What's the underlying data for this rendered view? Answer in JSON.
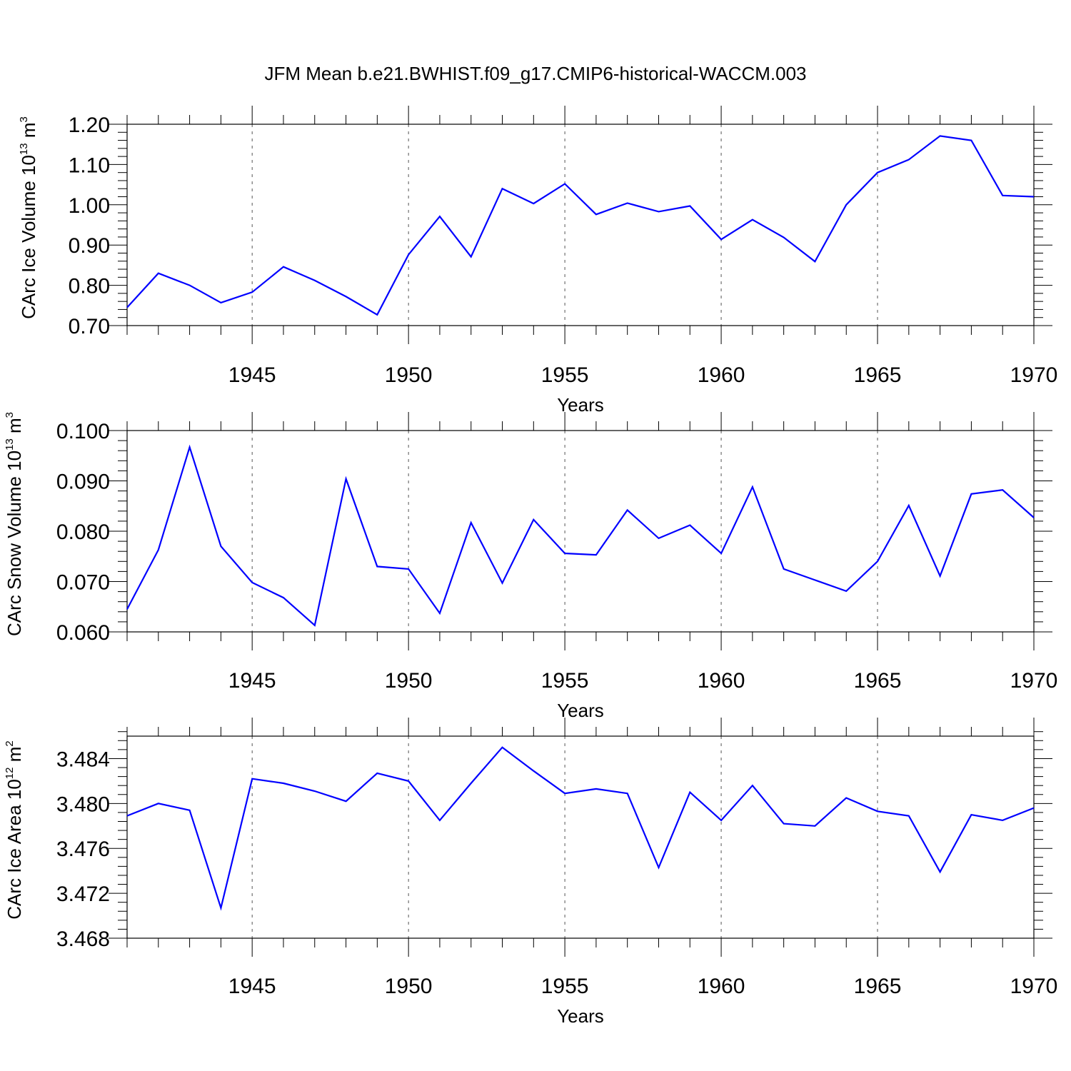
{
  "title": "JFM Mean b.e21.BWHIST.f09_g17.CMIP6-historical-WACCM.003",
  "chart_data": [
    {
      "type": "line",
      "xlabel": "Years",
      "ylabel": {
        "text": "CArc Ice Volume 10",
        "exponent": "13",
        "unit": " m",
        "unit_exponent": "3"
      },
      "xlim": [
        1941,
        1970
      ],
      "ylim": [
        0.7,
        1.2
      ],
      "x_ticks": [
        "1945",
        "1950",
        "1955",
        "1960",
        "1965",
        "1970"
      ],
      "y_ticks": [
        "0.70",
        "0.80",
        "0.90",
        "1.00",
        "1.10",
        "1.20"
      ],
      "grid": "vertical dashed at major x ticks",
      "line_color": "#0000ff",
      "x": [
        1941,
        1942,
        1943,
        1944,
        1945,
        1946,
        1947,
        1948,
        1949,
        1950,
        1951,
        1952,
        1953,
        1954,
        1955,
        1956,
        1957,
        1958,
        1959,
        1960,
        1961,
        1962,
        1963,
        1964,
        1965,
        1966,
        1967,
        1968,
        1969,
        1970
      ],
      "values": [
        0.745,
        0.83,
        0.8,
        0.757,
        0.783,
        0.846,
        0.812,
        0.772,
        0.727,
        0.876,
        0.971,
        0.871,
        1.04,
        1.003,
        1.052,
        0.976,
        1.004,
        0.983,
        0.997,
        0.914,
        0.963,
        0.919,
        0.859,
        1.0,
        1.08,
        1.112,
        1.171,
        1.16,
        1.023,
        1.02
      ]
    },
    {
      "type": "line",
      "xlabel": "Years",
      "ylabel": {
        "text": "CArc Snow Volume 10",
        "exponent": "13",
        "unit": " m",
        "unit_exponent": "3"
      },
      "xlim": [
        1941,
        1970
      ],
      "ylim": [
        0.06,
        0.1
      ],
      "x_ticks": [
        "1945",
        "1950",
        "1955",
        "1960",
        "1965",
        "1970"
      ],
      "y_ticks": [
        "0.060",
        "0.070",
        "0.080",
        "0.090",
        "0.100"
      ],
      "grid": "vertical dashed at major x ticks",
      "line_color": "#0000ff",
      "x": [
        1941,
        1942,
        1943,
        1944,
        1945,
        1946,
        1947,
        1948,
        1949,
        1950,
        1951,
        1952,
        1953,
        1954,
        1955,
        1956,
        1957,
        1958,
        1959,
        1960,
        1961,
        1962,
        1963,
        1964,
        1965,
        1966,
        1967,
        1968,
        1969,
        1970
      ],
      "values": [
        0.0645,
        0.0763,
        0.0967,
        0.077,
        0.0698,
        0.0668,
        0.0613,
        0.0904,
        0.073,
        0.0725,
        0.0637,
        0.0817,
        0.0697,
        0.0823,
        0.0756,
        0.0753,
        0.0842,
        0.0786,
        0.0812,
        0.0756,
        0.0888,
        0.0725,
        0.0703,
        0.0681,
        0.074,
        0.0851,
        0.0711,
        0.0874,
        0.0882,
        0.0827
      ]
    },
    {
      "type": "line",
      "xlabel": "Years",
      "ylabel": {
        "text": "CArc Ice Area 10",
        "exponent": "12",
        "unit": " m",
        "unit_exponent": "2"
      },
      "xlim": [
        1941,
        1970
      ],
      "ylim": [
        3.468,
        3.486
      ],
      "x_ticks": [
        "1945",
        "1950",
        "1955",
        "1960",
        "1965",
        "1970"
      ],
      "y_ticks": [
        "3.468",
        "3.472",
        "3.476",
        "3.480",
        "3.484"
      ],
      "grid": "vertical dashed at major x ticks",
      "line_color": "#0000ff",
      "x": [
        1941,
        1942,
        1943,
        1944,
        1945,
        1946,
        1947,
        1948,
        1949,
        1950,
        1951,
        1952,
        1953,
        1954,
        1955,
        1956,
        1957,
        1958,
        1959,
        1960,
        1961,
        1962,
        1963,
        1964,
        1965,
        1966,
        1967,
        1968,
        1969,
        1970
      ],
      "values": [
        3.4789,
        3.48,
        3.4794,
        3.4707,
        3.4822,
        3.4818,
        3.4811,
        3.4802,
        3.4827,
        3.482,
        3.4785,
        3.4818,
        3.485,
        3.4829,
        3.4809,
        3.4813,
        3.4809,
        3.4743,
        3.481,
        3.4785,
        3.4816,
        3.4782,
        3.478,
        3.4805,
        3.4793,
        3.4789,
        3.4739,
        3.479,
        3.4785,
        3.4796
      ]
    }
  ]
}
